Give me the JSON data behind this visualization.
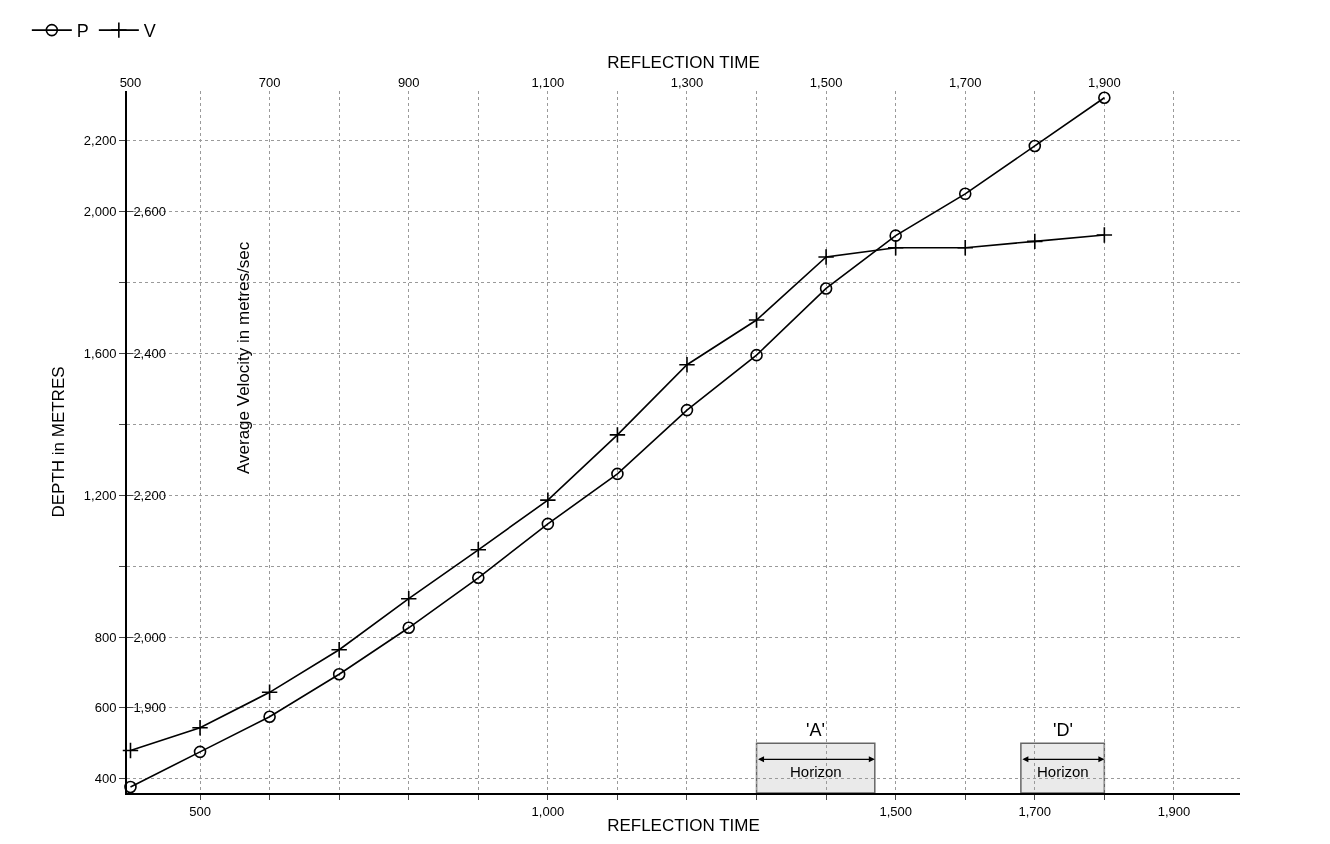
{
  "chart_data": {
    "type": "line",
    "xlabel": "REFLECTION TIME",
    "x2label": "REFLECTION TIME",
    "ylabel": "DEPTH in METRES",
    "y2label": "Average Velocity in metres/sec",
    "x": [
      400,
      500,
      600,
      700,
      800,
      900,
      1000,
      1100,
      1200,
      1300,
      1400,
      1500,
      1600,
      1700,
      1800
    ],
    "series": [
      {
        "name": "P",
        "color": "#000000",
        "marker": "circle",
        "values": [
          377,
          476,
          575,
          695,
          826,
          967,
          1119,
          1260,
          1440,
          1595,
          1783,
          1932,
          2050,
          2185,
          2321
        ]
      },
      {
        "name": "V",
        "color": "#000000",
        "marker": "cross",
        "axis": "y2",
        "values": [
          1840,
          1872,
          1922,
          1982,
          2054,
          2123,
          2193,
          2285,
          2384,
          2447,
          2536,
          2549,
          2549,
          2558,
          2567
        ]
      }
    ],
    "xlim": [
      395,
      1995
    ],
    "xticks": [
      {
        "value": 500,
        "label": "500"
      },
      {
        "value": 600,
        "label": null
      },
      {
        "value": 700,
        "label": null
      },
      {
        "value": 800,
        "label": null
      },
      {
        "value": 900,
        "label": null
      },
      {
        "value": 1000,
        "label": "1,000"
      },
      {
        "value": 1100,
        "label": null
      },
      {
        "value": 1200,
        "label": null
      },
      {
        "value": 1300,
        "label": null
      },
      {
        "value": 1400,
        "label": null
      },
      {
        "value": 1500,
        "label": "1,500"
      },
      {
        "value": 1600,
        "label": null
      },
      {
        "value": 1700,
        "label": "1,700"
      },
      {
        "value": 1800,
        "label": null
      },
      {
        "value": 1900,
        "label": "1,900"
      }
    ],
    "x2lim": [
      495,
      2095
    ],
    "x2ticks": [
      {
        "value": 500,
        "label": "500"
      },
      {
        "value": 700,
        "label": "700"
      },
      {
        "value": 900,
        "label": "900"
      },
      {
        "value": 1100,
        "label": "1,100"
      },
      {
        "value": 1300,
        "label": "1,300"
      },
      {
        "value": 1500,
        "label": "1,500"
      },
      {
        "value": 1700,
        "label": "1,700"
      },
      {
        "value": 1900,
        "label": "1,900"
      }
    ],
    "ylim": [
      360,
      2340
    ],
    "yticks": [
      {
        "value": 400,
        "label": "400"
      },
      {
        "value": 600,
        "label": "600"
      },
      {
        "value": 800,
        "label": "800"
      },
      {
        "value": 1000,
        "label": null
      },
      {
        "value": 1200,
        "label": "1,200"
      },
      {
        "value": 1400,
        "label": null
      },
      {
        "value": 1600,
        "label": "1,600"
      },
      {
        "value": 1800,
        "label": null
      },
      {
        "value": 2000,
        "label": "2,000"
      },
      {
        "value": 2200,
        "label": "2,200"
      }
    ],
    "y2lim": [
      1780,
      2770
    ],
    "y2ticks": [
      {
        "value": 1900,
        "label": "1,900"
      },
      {
        "value": 2000,
        "label": "2,000"
      },
      {
        "value": 2200,
        "label": "2,200"
      },
      {
        "value": 2400,
        "label": "2,400"
      },
      {
        "value": 2600,
        "label": "2,600"
      }
    ],
    "bands": [
      {
        "axis": "x",
        "from": 1300,
        "to": 1470,
        "label": "'A' Horizon"
      },
      {
        "axis": "x",
        "from": 1680,
        "to": 1800,
        "label": "'D' Horizon"
      }
    ],
    "grid": true,
    "legend": "top left",
    "line_style": "solid"
  }
}
